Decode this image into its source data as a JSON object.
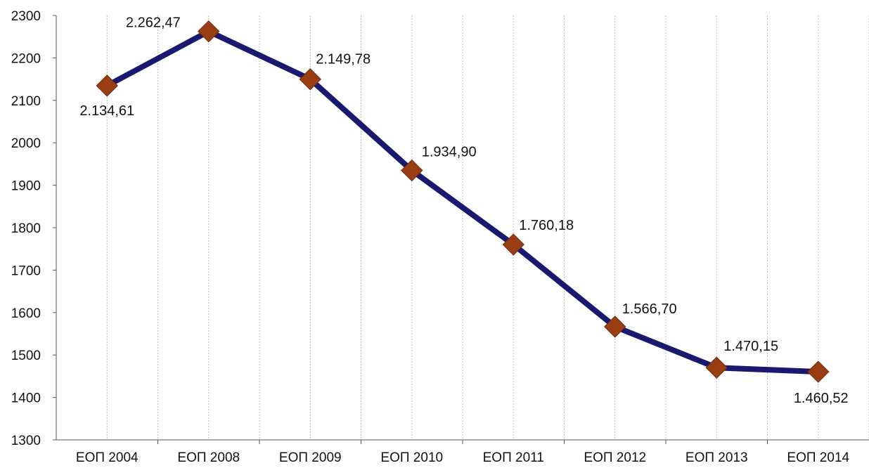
{
  "chart_data": {
    "type": "line",
    "title": "",
    "xlabel": "",
    "ylabel": "",
    "categories": [
      "ЕОП 2004",
      "ЕОП 2008",
      "ЕОП 2009",
      "ЕОП 2010",
      "ЕОП 2011",
      "ЕОП 2012",
      "ЕОП 2013",
      "ЕОП 2014"
    ],
    "series": [
      {
        "values": [
          2134.61,
          2262.47,
          2149.78,
          1934.9,
          1760.18,
          1566.7,
          1470.15,
          1460.52
        ],
        "data_labels": [
          "2.134,61",
          "2.262,47",
          "2.149,78",
          "1.934,90",
          "1.760,18",
          "1.566,70",
          "1.470,15",
          "1.460,52"
        ],
        "line_color": "#191970",
        "marker": "diamond",
        "marker_color": "#9b3d12"
      }
    ],
    "ylim": [
      1300,
      2300
    ],
    "yticks": [
      "1300",
      "1400",
      "1500",
      "1600",
      "1700",
      "1800",
      "1900",
      "2000",
      "2100",
      "2200",
      "2300"
    ],
    "grid": "vertical dotted",
    "legend": "none"
  }
}
